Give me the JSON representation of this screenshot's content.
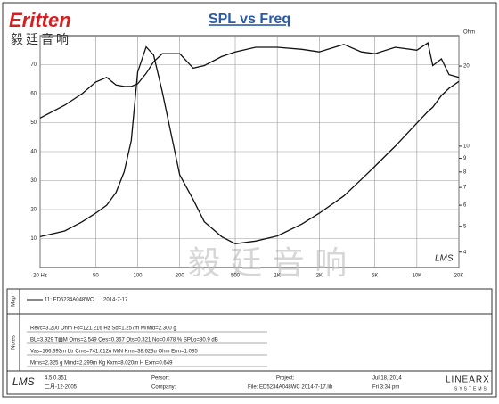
{
  "logo": {
    "brand": "Eritten",
    "chinese": "毅廷音响"
  },
  "watermark": "毅 廷 音 响",
  "chart_data": {
    "type": "line",
    "title": "SPL vs Freq",
    "y2_label": "Ohm",
    "corner_mark": "LMS",
    "x": [
      20,
      30,
      40,
      50,
      60,
      70,
      80,
      90,
      100,
      115,
      130,
      150,
      200,
      250,
      300,
      400,
      500,
      700,
      1000,
      1500,
      2000,
      3000,
      4000,
      5000,
      7000,
      10000,
      12000,
      13000,
      15000,
      17000,
      20000
    ],
    "xlim": [
      20,
      20000
    ],
    "log_x": true,
    "xticks": [
      {
        "value": 20,
        "label": "20 Hz"
      },
      50,
      100,
      200,
      500,
      {
        "value": 1000,
        "label": "1K"
      },
      {
        "value": 2000,
        "label": "2K"
      },
      {
        "value": 5000,
        "label": "5K"
      },
      {
        "value": 10000,
        "label": "10K"
      },
      {
        "value": 20000,
        "label": "20K"
      }
    ],
    "ylim": [
      0,
      80
    ],
    "yticks": [
      10,
      20,
      30,
      40,
      50,
      60,
      70
    ],
    "y2lim": [
      3.5,
      26
    ],
    "log_y2": true,
    "y2ticks": [
      4,
      5,
      6,
      7,
      8,
      9,
      10,
      20
    ],
    "grid": true,
    "series": [
      {
        "name": "SPL",
        "color": "#111111",
        "values": [
          51.6,
          56,
          60,
          64,
          65.6,
          63,
          62.5,
          62.5,
          63.4,
          67,
          71,
          73.8,
          73.8,
          68.8,
          69.7,
          72.8,
          74.4,
          76,
          76,
          75.3,
          74.4,
          77,
          74.4,
          73.8,
          76,
          75,
          77.5,
          69.7,
          72,
          66.6,
          65.6
        ]
      },
      {
        "name": "Impedance",
        "color": "#111111",
        "axis": "y2",
        "values": [
          4.57,
          4.8,
          5.2,
          5.6,
          6,
          6.7,
          8,
          10.5,
          19,
          23.6,
          22,
          16,
          7.8,
          6.3,
          5.2,
          4.57,
          4.3,
          4.4,
          4.6,
          5.1,
          5.6,
          6.5,
          7.5,
          8.4,
          10,
          12.2,
          13.5,
          14,
          15.5,
          16.5,
          17.5
        ]
      }
    ]
  },
  "map": {
    "side": "Map",
    "entry": "11: ED5234A048WC",
    "date": "2014-7-17"
  },
  "notes": {
    "side": "Notes",
    "lines": [
      "Revc=3.200 Ohm  Fo=121.216 Hz  Sd=1.257m M/Mld=2.300 g",
      "BL=3.929 T▦M  Qms=2.549  Qes=0.367  Qts=0.321  No=0.078 %  SPLo=80.9 dB",
      "Vas=166.393m Ltr  Cms=741.612u M/N  Krm=38.623u Ohm  Erm=1.085",
      "Mms=2.325 g  Mmd=2.299m Kg  Kxm=8.020m H  Exm=0.649"
    ]
  },
  "footer": {
    "app": "LMS",
    "version": "4.5.0.351",
    "build_date": "二月-12-2005",
    "person": "Person:",
    "company": "Company:",
    "project": "Project:",
    "file": "File: ED5234A048WC  2014-7-17.lib",
    "date": "Jul 18, 2014",
    "time": "Fri 3:34 pm",
    "vendor": "LINEARX",
    "vendor_sub": "SYSTEMS"
  }
}
